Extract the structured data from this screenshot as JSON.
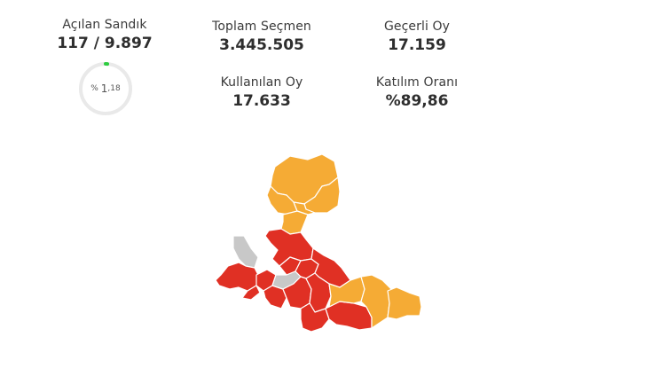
{
  "stats": {
    "acilan_sandik": {
      "label": "Açılan Sandık",
      "value": "117 / 9.897"
    },
    "toplam_secmen": {
      "label": "Toplam Seçmen",
      "value": "3.445.505"
    },
    "gecerli_oy": {
      "label": "Geçerli Oy",
      "value": "17.159"
    },
    "kullanilan_oy": {
      "label": "Kullanılan Oy",
      "value": "17.633"
    },
    "katilim_orani": {
      "label": "Katılım Oranı",
      "value": "%89,86"
    }
  },
  "gauge": {
    "prefix": "%",
    "integer": "1",
    "decimal": ",18",
    "progress_fraction": 0.0118,
    "track_color": "#e9e9e9",
    "progress_color": "#2ecc40"
  },
  "map": {
    "colors": {
      "red": "#e03024",
      "orange": "#f5ab35",
      "gray": "#c8c8c8"
    }
  }
}
